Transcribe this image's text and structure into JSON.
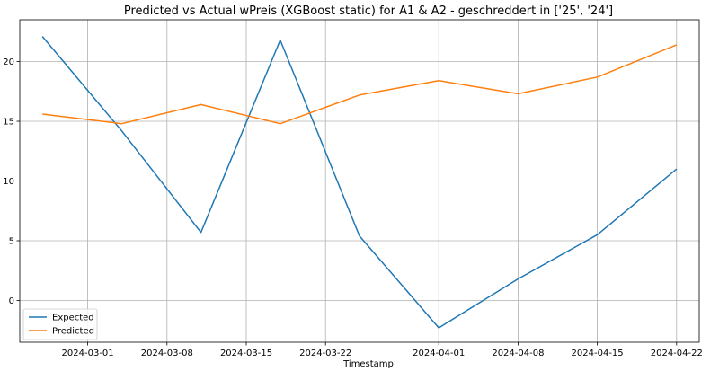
{
  "chart_data": {
    "type": "line",
    "title": "Predicted vs Actual wPreis (XGBoost static) for A1 & A2 -  geschreddert in ['25', '24']",
    "xlabel": "Timestamp",
    "ylabel": "",
    "x": [
      "2024-02-26",
      "2024-03-04",
      "2024-03-11",
      "2024-03-18",
      "2024-03-25",
      "2024-04-01",
      "2024-04-08",
      "2024-04-15",
      "2024-04-22"
    ],
    "x_ticks": [
      "2024-03-01",
      "2024-03-08",
      "2024-03-15",
      "2024-03-22",
      "2024-04-01",
      "2024-04-08",
      "2024-04-15",
      "2024-04-22"
    ],
    "y_ticks": [
      0,
      5,
      10,
      15,
      20
    ],
    "xlim": [
      "2024-02-24",
      "2024-04-24"
    ],
    "ylim": [
      -3.5,
      23.5
    ],
    "grid": true,
    "legend_position": "lower-left",
    "series": [
      {
        "name": "Expected",
        "color": "#1f77b4",
        "values": [
          22.1,
          14.2,
          5.7,
          21.8,
          5.4,
          -2.3,
          1.8,
          5.5,
          11.0
        ]
      },
      {
        "name": "Predicted",
        "color": "#ff7f0e",
        "values": [
          15.6,
          14.8,
          16.4,
          14.8,
          17.2,
          18.4,
          17.3,
          18.7,
          21.4
        ]
      }
    ]
  }
}
